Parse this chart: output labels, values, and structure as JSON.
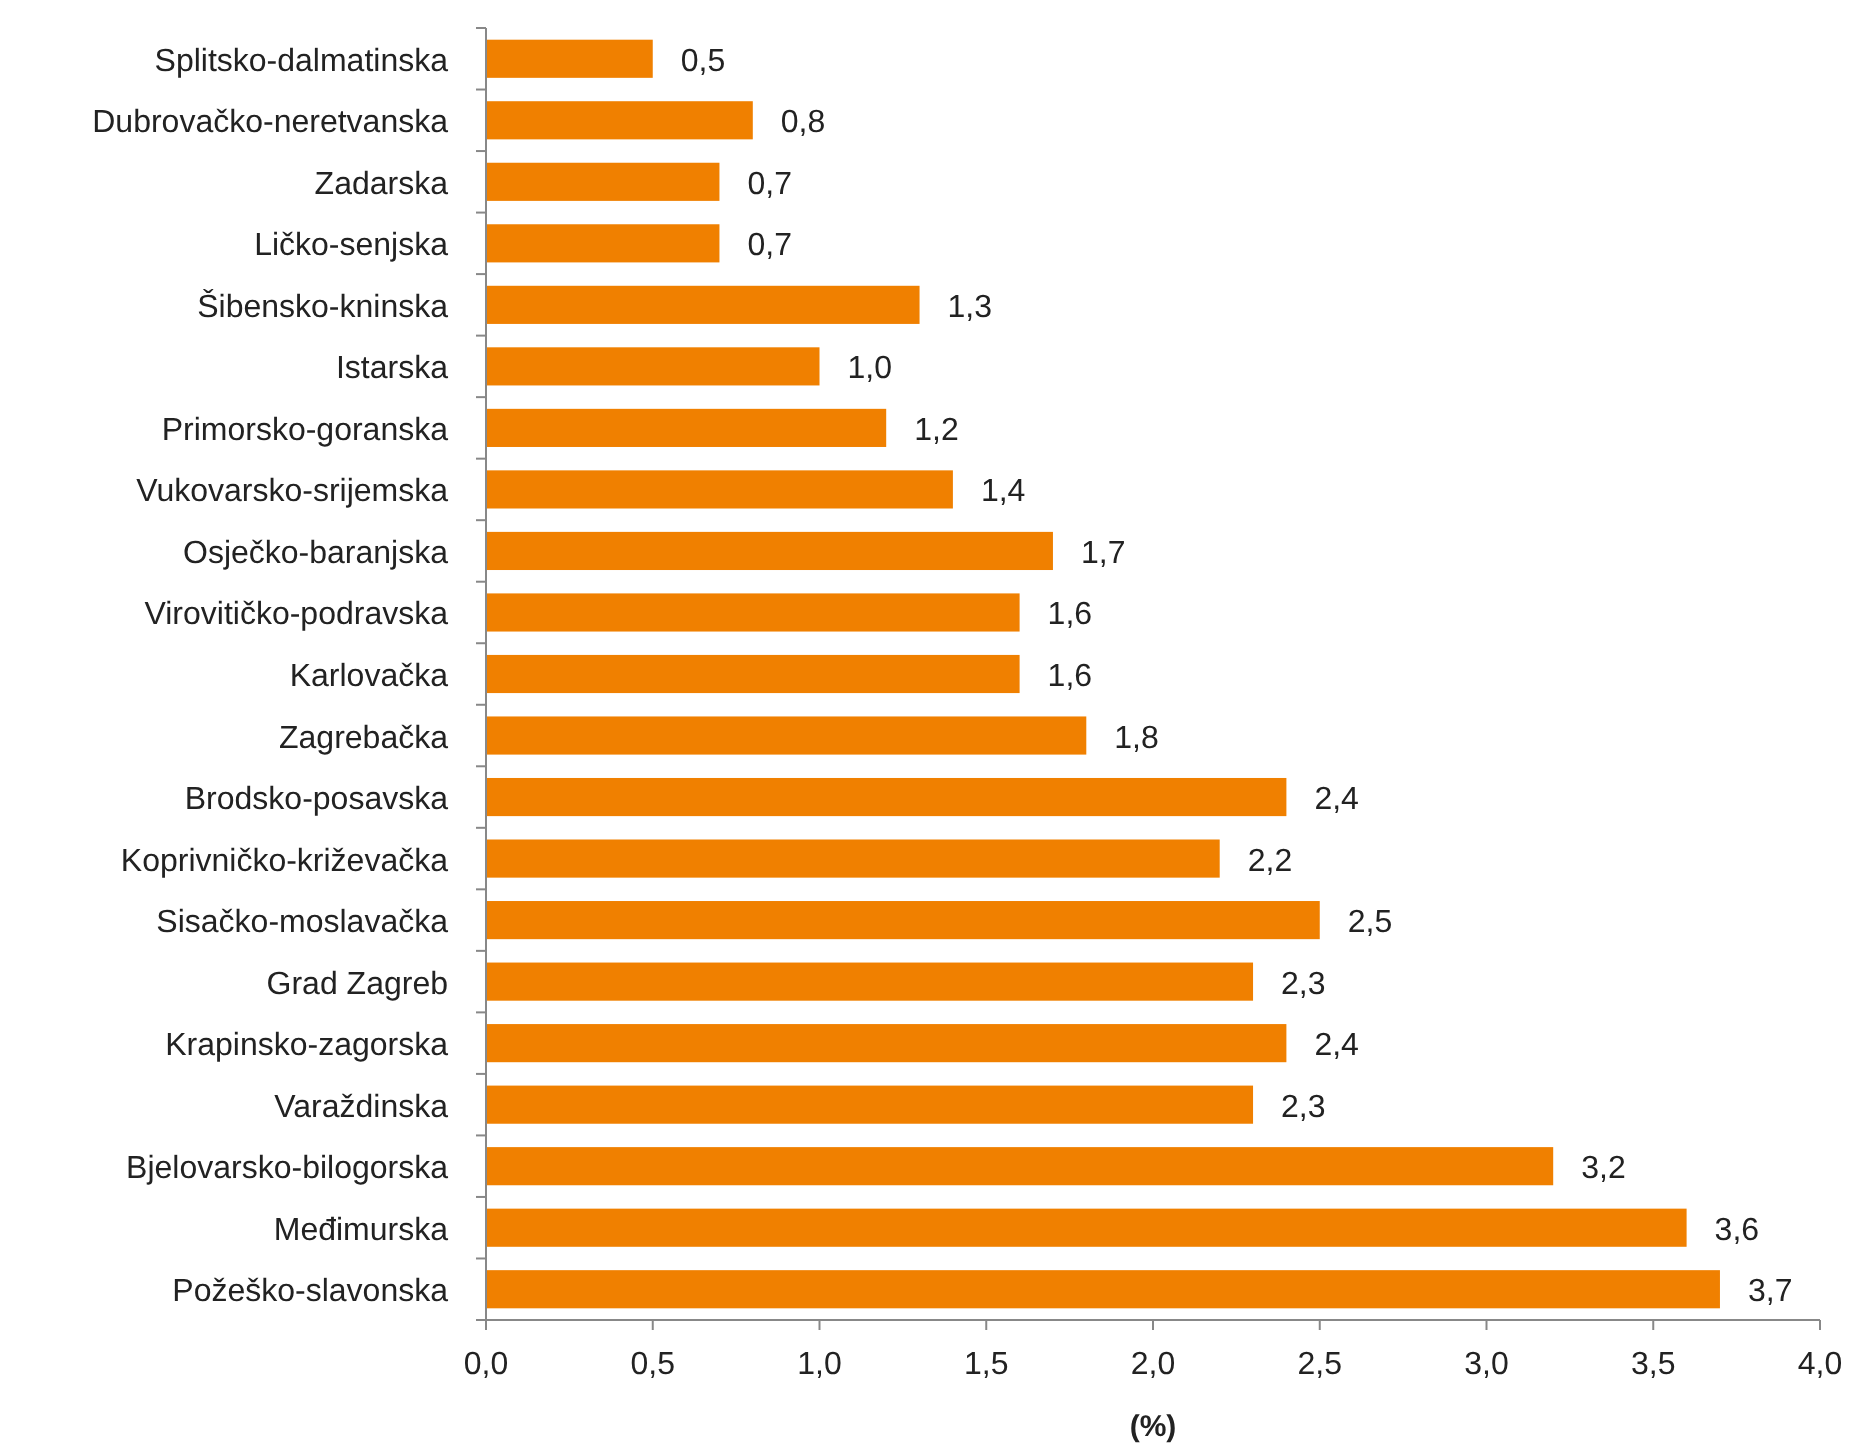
{
  "chart_data": {
    "type": "bar",
    "orientation": "horizontal",
    "xlabel": "(%)",
    "categories": [
      "Splitsko-dalmatinska",
      "Dubrovačko-neretvanska",
      "Zadarska",
      "Ličko-senjska",
      "Šibensko-kninska",
      "Istarska",
      "Primorsko-goranska",
      "Vukovarsko-srijemska",
      "Osječko-baranjska",
      "Virovitičko-podravska",
      "Karlovačka",
      "Zagrebačka",
      "Brodsko-posavska",
      "Koprivničko-križevačka",
      "Sisačko-moslavačka",
      "Grad Zagreb",
      "Krapinsko-zagorska",
      "Varaždinska",
      "Bjelovarsko-bilogorska",
      "Međimurska",
      "Požeško-slavonska"
    ],
    "values": [
      0.5,
      0.8,
      0.7,
      0.7,
      1.3,
      1.0,
      1.2,
      1.4,
      1.7,
      1.6,
      1.6,
      1.8,
      2.4,
      2.2,
      2.5,
      2.3,
      2.4,
      2.3,
      3.2,
      3.6,
      3.7
    ],
    "value_labels": [
      "0,5",
      "0,8",
      "0,7",
      "0,7",
      "1,3",
      "1,0",
      "1,2",
      "1,4",
      "1,7",
      "1,6",
      "1,6",
      "1,8",
      "2,4",
      "2,2",
      "2,5",
      "2,3",
      "2,4",
      "2,3",
      "3,2",
      "3,6",
      "3,7"
    ],
    "color": "#f08000",
    "xlim": [
      0,
      4
    ],
    "xticks": [
      {
        "value": 0,
        "label": "0,0"
      },
      {
        "value": 0.5,
        "label": "0,5"
      },
      {
        "value": 1,
        "label": "1,0"
      },
      {
        "value": 1.5,
        "label": "1,5"
      },
      {
        "value": 2,
        "label": "2,0"
      },
      {
        "value": 2.5,
        "label": "2,5"
      },
      {
        "value": 3,
        "label": "3,0"
      },
      {
        "value": 3.5,
        "label": "3,5"
      },
      {
        "value": 4,
        "label": "4,0"
      }
    ],
    "grid": false
  }
}
